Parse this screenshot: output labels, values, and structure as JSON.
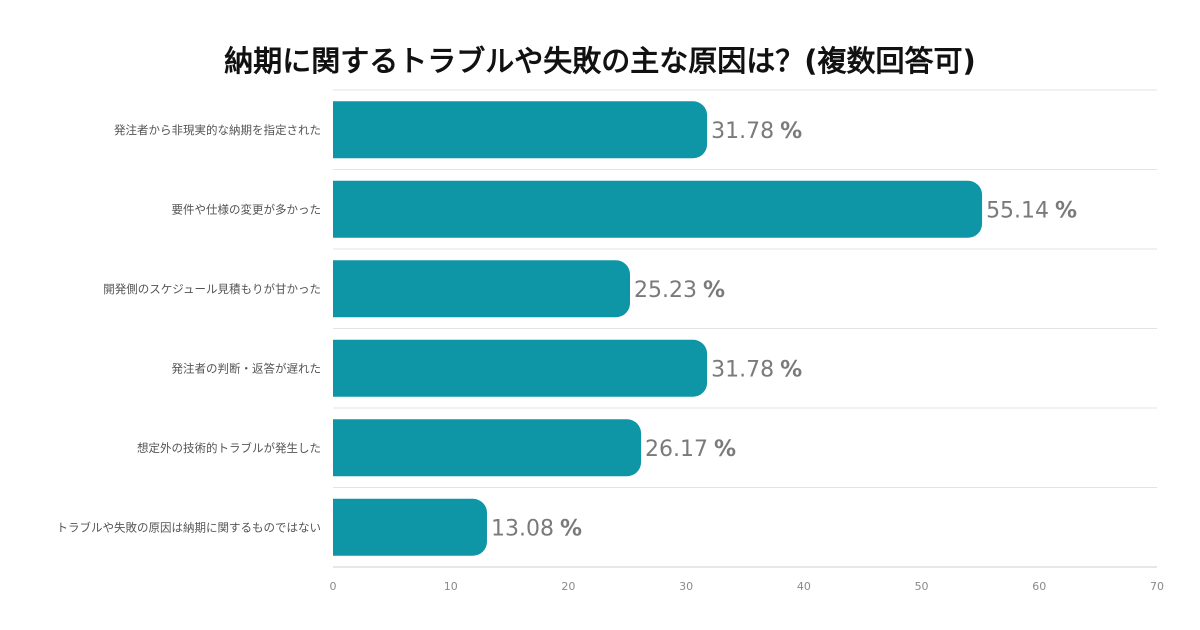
{
  "chart_data": {
    "type": "bar",
    "orientation": "horizontal",
    "title": "納期に関するトラブルや失敗の主な原因は？(複数回答可)",
    "categories": [
      "発注者から非現実的な納期を指定された",
      "要件や仕様の変更が多かった",
      "開発側のスケジュール見積もりが甘かった",
      "発注者の判断・返答が遅れた",
      "想定外の技術的トラブルが発生した",
      "トラブルや失敗の原因は納期に関するものではない"
    ],
    "values": [
      31.78,
      55.14,
      25.23,
      31.78,
      26.17,
      13.08
    ],
    "value_labels": [
      "31.78",
      "55.14",
      "25.23",
      "31.78",
      "26.17",
      "13.08"
    ],
    "value_suffix": "%",
    "xlim": [
      0,
      70
    ],
    "xticks": [
      0,
      10,
      20,
      30,
      40,
      50,
      60,
      70
    ],
    "grid": true,
    "bar_color": "#0e95a6"
  }
}
